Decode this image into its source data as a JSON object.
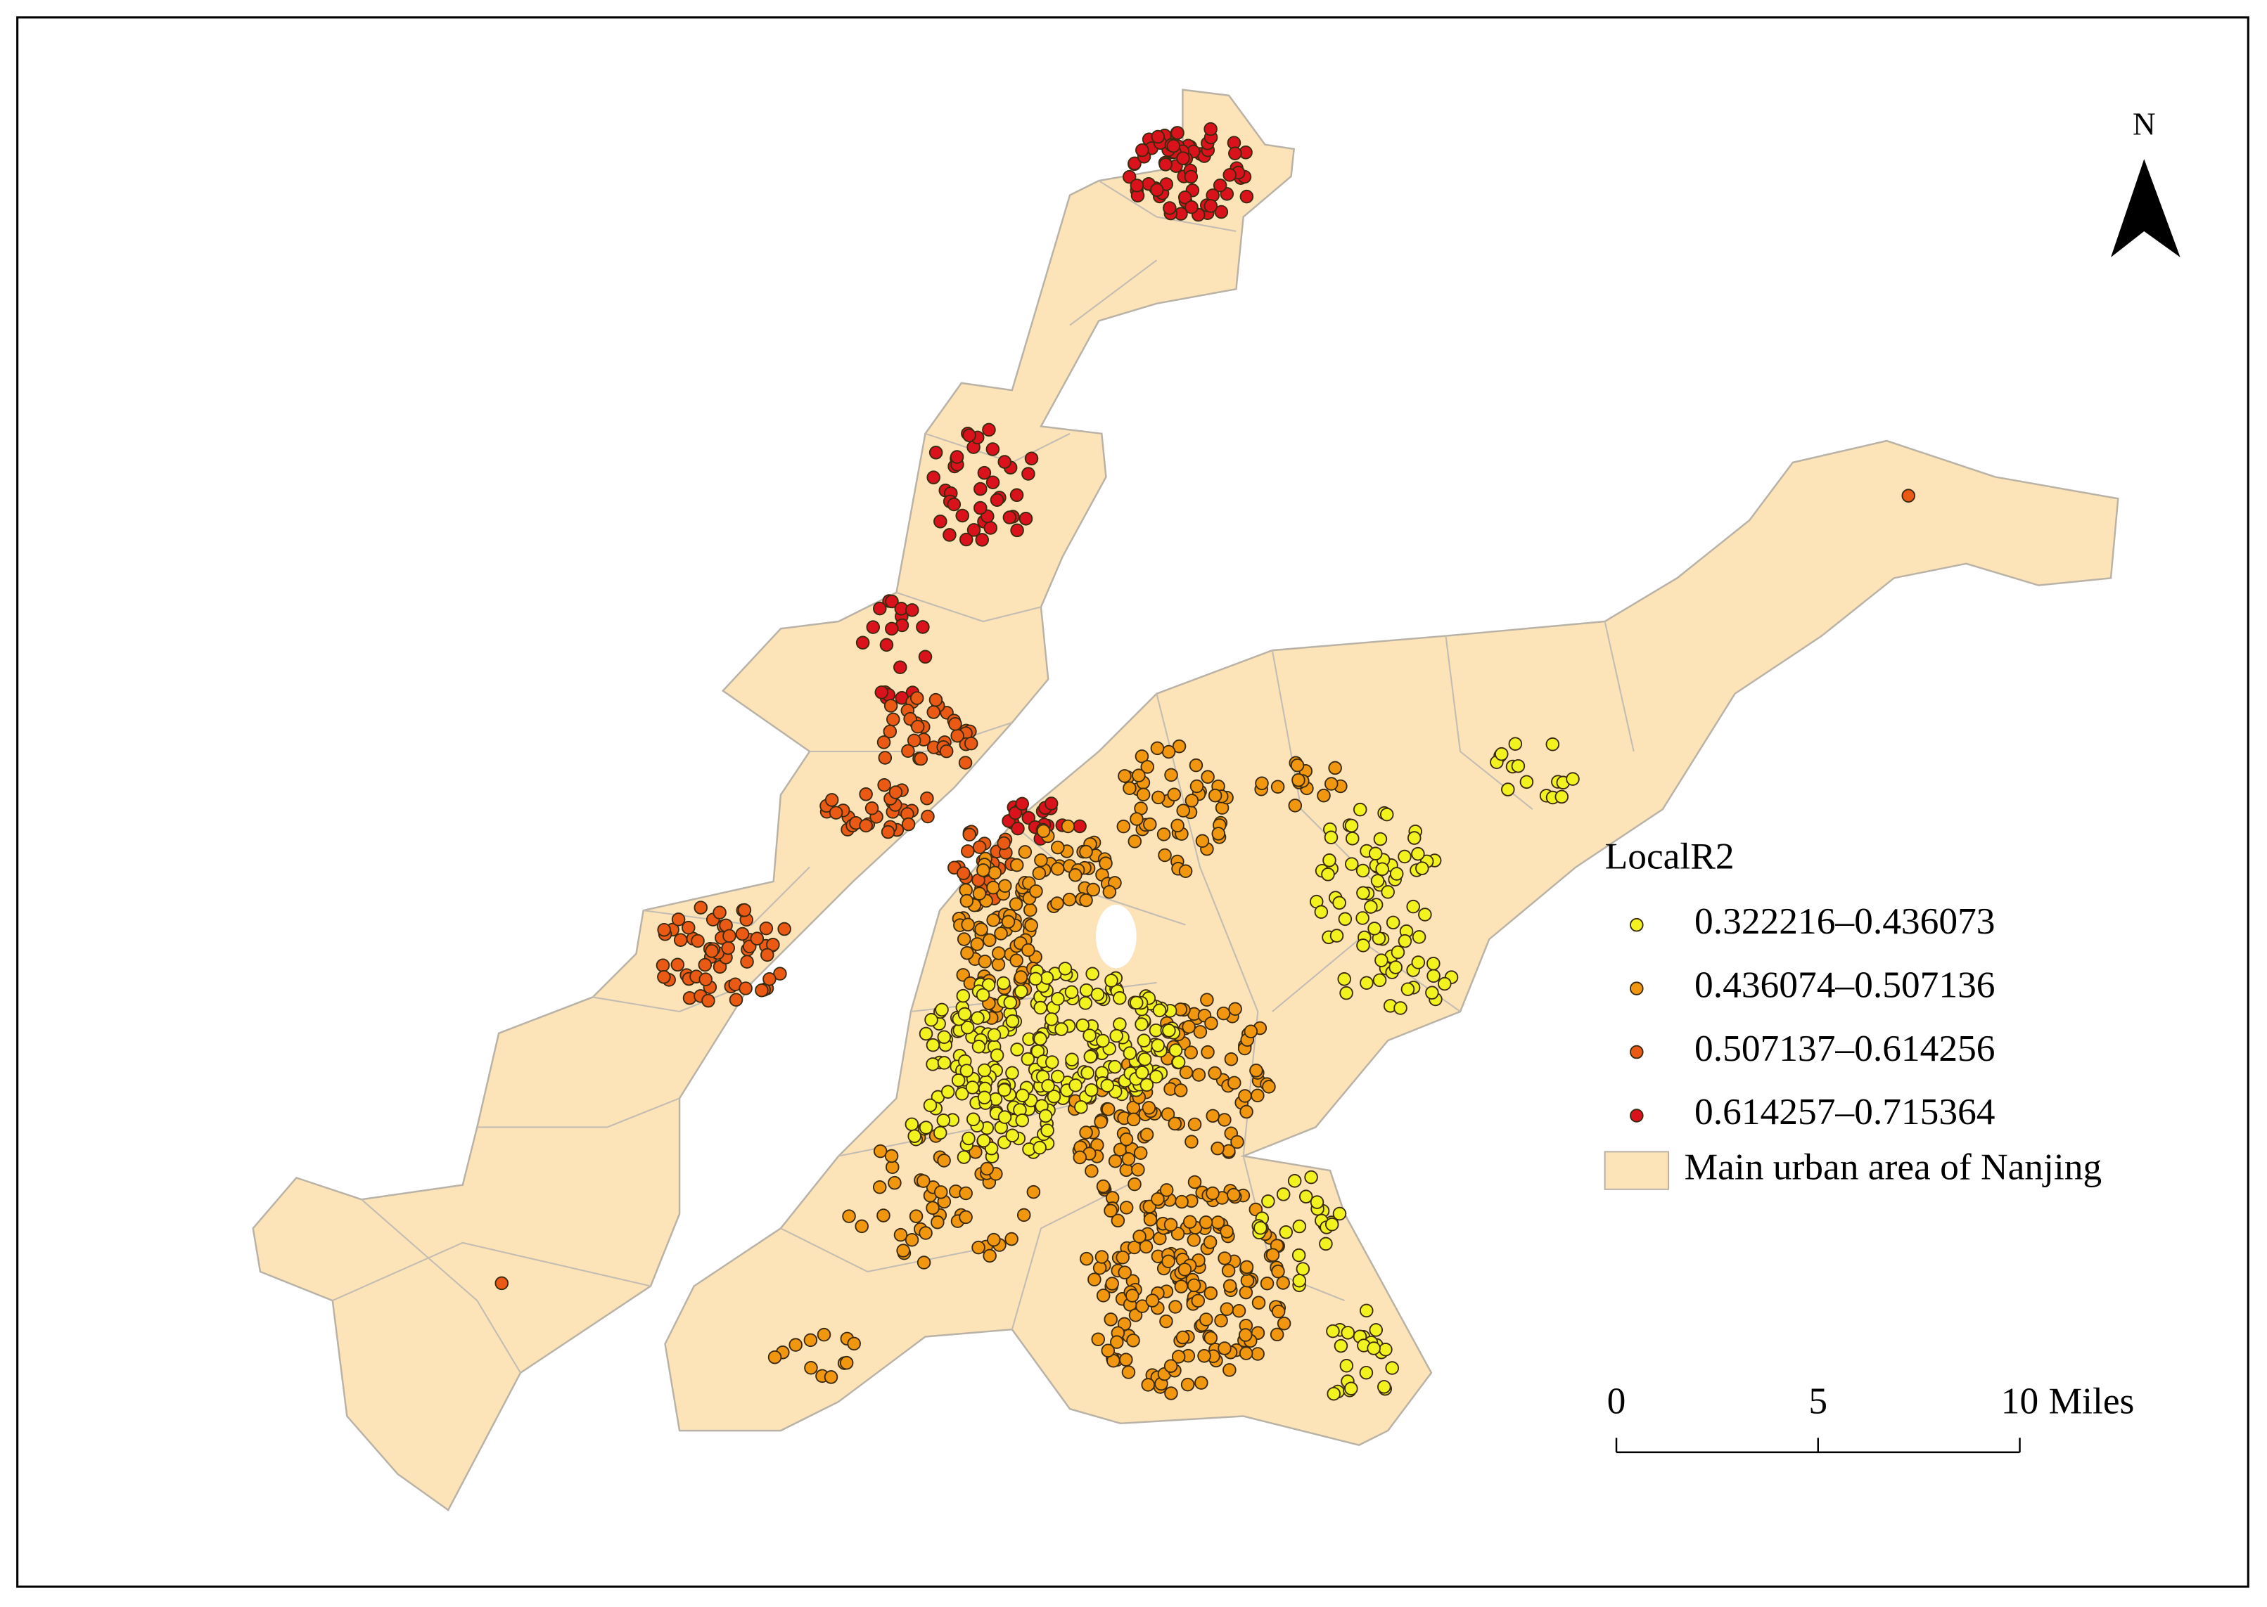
{
  "map": {
    "north_label": "N",
    "legend": {
      "title": "LocalR2",
      "items": [
        {
          "label": "0.322216–0.436073",
          "color": "#f2f21e"
        },
        {
          "label": "0.436074–0.507136",
          "color": "#f0960f"
        },
        {
          "label": "0.507137–0.614256",
          "color": "#eb5a14"
        },
        {
          "label": "0.614257–0.715364",
          "color": "#d9121b"
        }
      ],
      "area": {
        "label": "Main urban area of Nanjing",
        "color": "#fce3b8"
      }
    },
    "scale_bar": {
      "ticks": [
        0,
        5,
        10
      ],
      "unit": "Miles"
    }
  }
}
